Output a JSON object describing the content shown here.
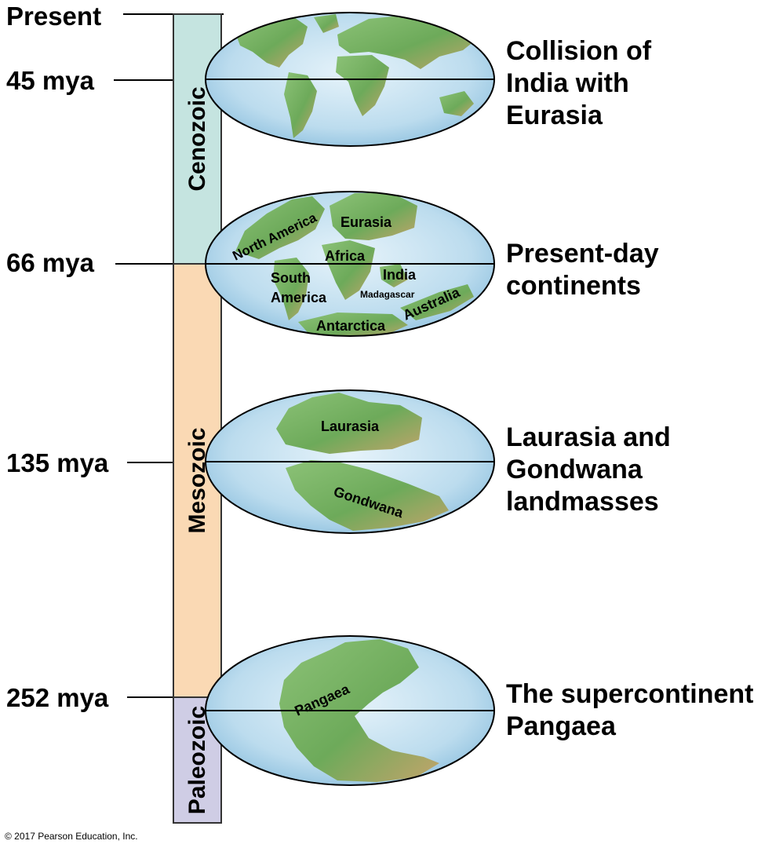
{
  "timeline": {
    "present": "Present",
    "t45": "45 mya",
    "t66": "66 mya",
    "t135": "135 mya",
    "t252": "252 mya"
  },
  "eras": {
    "cenozoic": "Cenozoic",
    "mesozoic": "Mesozoic",
    "paleozoic": "Paleozoic"
  },
  "colors": {
    "cenozoic": "#c5e4e0",
    "mesozoic": "#fad9b4",
    "paleozoic": "#cfcde5",
    "ocean": "#b7d9ec",
    "land": "#7fb86a",
    "land_dark": "#c9a76c"
  },
  "captions": {
    "c1": [
      "Collision of",
      "India with",
      "Eurasia"
    ],
    "c2": [
      "Present-day",
      "continents"
    ],
    "c3": [
      "Laurasia and",
      "Gondwana",
      "landmasses"
    ],
    "c4": [
      "The supercontinent",
      "Pangaea"
    ]
  },
  "map_labels": {
    "north_america": "North America",
    "eurasia": "Eurasia",
    "africa": "Africa",
    "south_america_1": "South",
    "south_america_2": "America",
    "india": "India",
    "madagascar": "Madagascar",
    "australia": "Australia",
    "antarctica": "Antarctica",
    "laurasia": "Laurasia",
    "gondwana": "Gondwana",
    "pangaea": "Pangaea"
  },
  "footer": {
    "copyright": "© 2017 Pearson Education, Inc."
  }
}
